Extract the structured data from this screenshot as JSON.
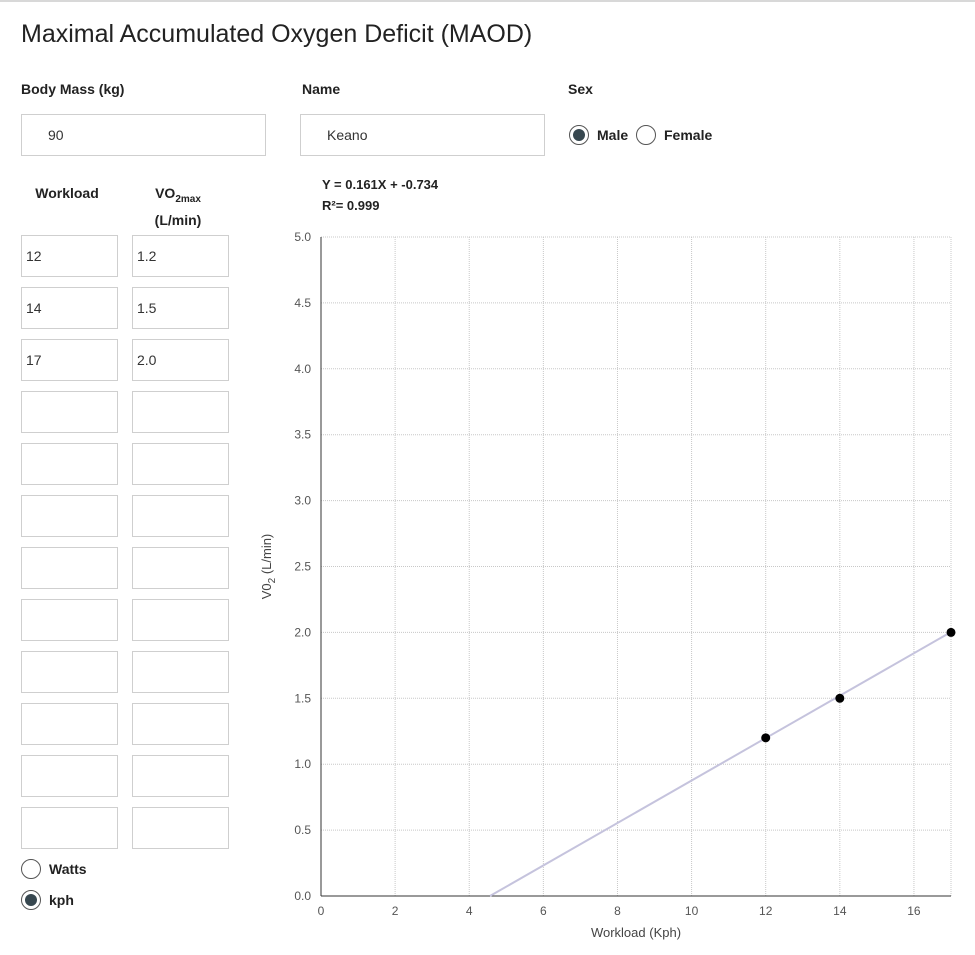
{
  "page": {
    "title": "Maximal Accumulated Oxygen Deficit (MAOD)"
  },
  "form": {
    "body_mass_label": "Body Mass (kg)",
    "body_mass_value": "90",
    "name_label": "Name",
    "name_value": "Keano",
    "sex_label": "Sex",
    "sex_options": [
      {
        "label": "Male",
        "checked": true
      },
      {
        "label": "Female",
        "checked": false
      }
    ]
  },
  "table": {
    "workload_header": "Workload",
    "vo2_header_main": "VO",
    "vo2_header_sub": "2max",
    "vo2_header_unit": "(L/min)",
    "rows": [
      {
        "workload": "12",
        "vo2": "1.2"
      },
      {
        "workload": "14",
        "vo2": "1.5"
      },
      {
        "workload": "17",
        "vo2": "2.0"
      },
      {
        "workload": "",
        "vo2": ""
      },
      {
        "workload": "",
        "vo2": ""
      },
      {
        "workload": "",
        "vo2": ""
      },
      {
        "workload": "",
        "vo2": ""
      },
      {
        "workload": "",
        "vo2": ""
      },
      {
        "workload": "",
        "vo2": ""
      },
      {
        "workload": "",
        "vo2": ""
      },
      {
        "workload": "",
        "vo2": ""
      },
      {
        "workload": "",
        "vo2": ""
      }
    ]
  },
  "units": {
    "options": [
      {
        "label": "Watts",
        "checked": false
      },
      {
        "label": "kph",
        "checked": true
      }
    ]
  },
  "regression": {
    "equation": "Y = 0.161X + -0.734",
    "r_squared": "R²= 0.999"
  },
  "chart_data": {
    "type": "scatter",
    "xlabel": "Workload (Kph)",
    "ylabel_main": "V0",
    "ylabel_sub": "2",
    "ylabel_unit": " (L/min)",
    "xlim": [
      0,
      17
    ],
    "ylim": [
      0,
      5
    ],
    "x_ticks": [
      0,
      2,
      4,
      6,
      8,
      10,
      12,
      14,
      16
    ],
    "y_ticks": [
      "0.0",
      "0.5",
      "1.0",
      "1.5",
      "2.0",
      "2.5",
      "3.0",
      "3.5",
      "4.0",
      "4.5",
      "5.0"
    ],
    "grid": true,
    "points": [
      {
        "x": 12,
        "y": 1.2
      },
      {
        "x": 14,
        "y": 1.5
      },
      {
        "x": 17,
        "y": 2.0
      }
    ],
    "fit_line": {
      "slope": 0.161,
      "intercept": -0.734
    },
    "colors": {
      "points": "#000000",
      "fit_line": "#c5c3dd",
      "grid": "#c8c8c8",
      "axis": "#333333"
    }
  }
}
